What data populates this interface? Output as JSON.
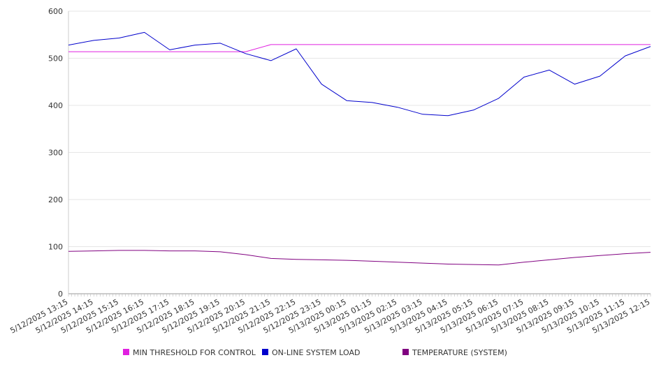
{
  "chart_data": {
    "type": "line",
    "title": "",
    "xlabel": "",
    "ylabel": "",
    "ylim": [
      0,
      600
    ],
    "yticks": [
      "0",
      "100",
      "200",
      "300",
      "400",
      "500",
      "600"
    ],
    "x": [
      "5/12/2025 13:15",
      "5/12/2025 14:15",
      "5/12/2025 15:15",
      "5/12/2025 16:15",
      "5/12/2025 17:15",
      "5/12/2025 18:15",
      "5/12/2025 19:15",
      "5/12/2025 20:15",
      "5/12/2025 21:15",
      "5/12/2025 22:15",
      "5/12/2025 23:15",
      "5/13/2025 00:15",
      "5/13/2025 01:15",
      "5/13/2025 02:15",
      "5/13/2025 03:15",
      "5/13/2025 04:15",
      "5/13/2025 05:15",
      "5/13/2025 06:15",
      "5/13/2025 07:15",
      "5/13/2025 08:15",
      "5/13/2025 09:15",
      "5/13/2025 10:15",
      "5/13/2025 11:15",
      "5/13/2025 12:15"
    ],
    "grid": true,
    "legend_position": "bottom",
    "series": [
      {
        "name": "MIN THRESHOLD FOR CONTROL",
        "color": "#e020e0",
        "values": [
          514,
          514,
          514,
          514,
          514,
          514,
          514,
          514,
          529,
          529,
          529,
          529,
          529,
          529,
          529,
          529,
          529,
          529,
          529,
          529,
          529,
          529,
          529,
          529
        ]
      },
      {
        "name": "ON-LINE SYSTEM LOAD",
        "color": "#0000cc",
        "values": [
          528,
          538,
          543,
          555,
          518,
          528,
          532,
          510,
          495,
          520,
          445,
          410,
          406,
          396,
          381,
          378,
          390,
          415,
          460,
          475,
          445,
          462,
          505,
          525
        ]
      },
      {
        "name": "TEMPERATURE (SYSTEM)",
        "color": "#800080",
        "values": [
          90,
          91,
          92,
          92,
          91,
          91,
          89,
          83,
          75,
          73,
          72,
          71,
          69,
          67,
          65,
          63,
          62,
          61,
          67,
          72,
          77,
          81,
          85,
          88
        ]
      }
    ]
  }
}
